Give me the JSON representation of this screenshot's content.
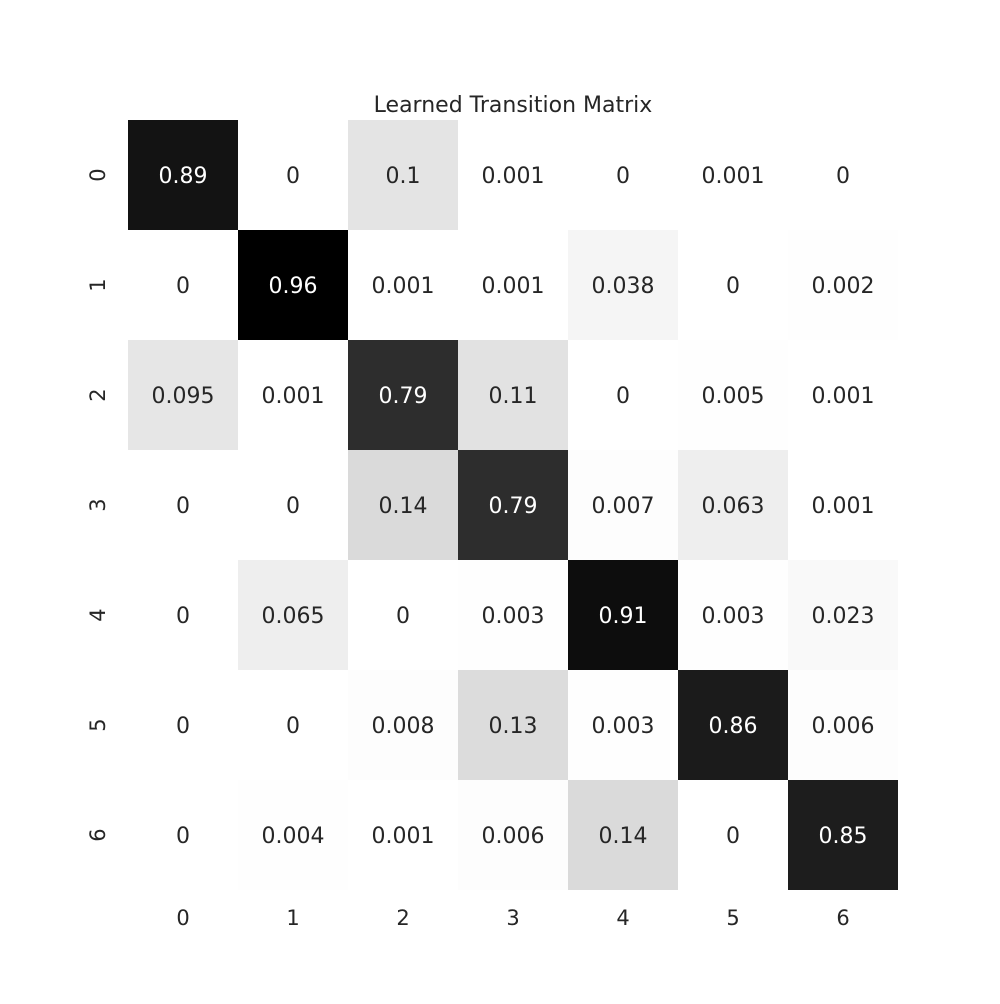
{
  "chart_data": {
    "type": "heatmap",
    "title": "Learned Transition Matrix",
    "xlabel": "",
    "ylabel": "",
    "x_tick_labels": [
      "0",
      "1",
      "2",
      "3",
      "4",
      "5",
      "6"
    ],
    "y_tick_labels": [
      "0",
      "1",
      "2",
      "3",
      "4",
      "5",
      "6"
    ],
    "colormap": "gray_r",
    "color_range": [
      0,
      0.96
    ],
    "low_color": "#ffffff",
    "high_color": "#000000",
    "annotation_dark_color": "#262626",
    "annotation_light_color": "#ffffff",
    "colorbar": false,
    "values": [
      [
        "0.89",
        "0",
        "0.1",
        "0.001",
        "0",
        "0.001",
        "0"
      ],
      [
        "0",
        "0.96",
        "0.001",
        "0.001",
        "0.038",
        "0",
        "0.002"
      ],
      [
        "0.095",
        "0.001",
        "0.79",
        "0.11",
        "0",
        "0.005",
        "0.001"
      ],
      [
        "0",
        "0",
        "0.14",
        "0.79",
        "0.007",
        "0.063",
        "0.001"
      ],
      [
        "0",
        "0.065",
        "0",
        "0.003",
        "0.91",
        "0.003",
        "0.023"
      ],
      [
        "0",
        "0",
        "0.008",
        "0.13",
        "0.003",
        "0.86",
        "0.006"
      ],
      [
        "0",
        "0.004",
        "0.001",
        "0.006",
        "0.14",
        "0",
        "0.85"
      ]
    ]
  }
}
